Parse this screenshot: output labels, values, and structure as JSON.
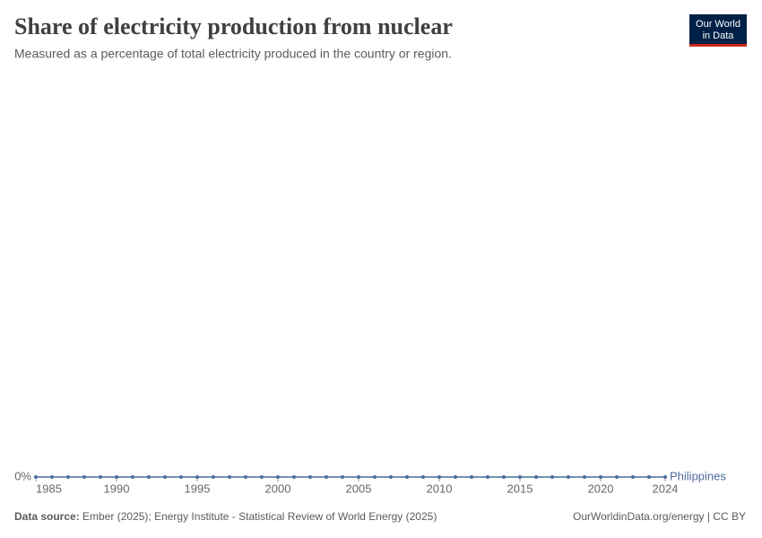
{
  "chart_data": {
    "type": "line",
    "title": "Share of electricity production from nuclear",
    "subtitle": "Measured as a percentage of total electricity produced in the country or region.",
    "logo": [
      "Our World",
      "in Data"
    ],
    "source_label": "Data source:",
    "source": "Ember (2025); Energy Institute - Statistical Review of World Energy (2025)",
    "credit": "OurWorldinData.org/energy | CC BY",
    "x": [
      1985,
      1986,
      1987,
      1988,
      1989,
      1990,
      1991,
      1992,
      1993,
      1994,
      1995,
      1996,
      1997,
      1998,
      1999,
      2000,
      2001,
      2002,
      2003,
      2004,
      2005,
      2006,
      2007,
      2008,
      2009,
      2010,
      2011,
      2012,
      2013,
      2014,
      2015,
      2016,
      2017,
      2018,
      2019,
      2020,
      2021,
      2022,
      2023,
      2024
    ],
    "series": [
      {
        "name": "Philippines",
        "color": "#4c6a9c",
        "values": [
          0,
          0,
          0,
          0,
          0,
          0,
          0,
          0,
          0,
          0,
          0,
          0,
          0,
          0,
          0,
          0,
          0,
          0,
          0,
          0,
          0,
          0,
          0,
          0,
          0,
          0,
          0,
          0,
          0,
          0,
          0,
          0,
          0,
          0,
          0,
          0,
          0,
          0,
          0,
          0
        ]
      }
    ],
    "xlim": [
      1985,
      2024
    ],
    "xticks": [
      1985,
      1990,
      1995,
      2000,
      2005,
      2010,
      2015,
      2020,
      2024
    ],
    "ylim": [
      0,
      1
    ],
    "yticks": [
      {
        "value": 0,
        "label": "0%"
      }
    ]
  }
}
